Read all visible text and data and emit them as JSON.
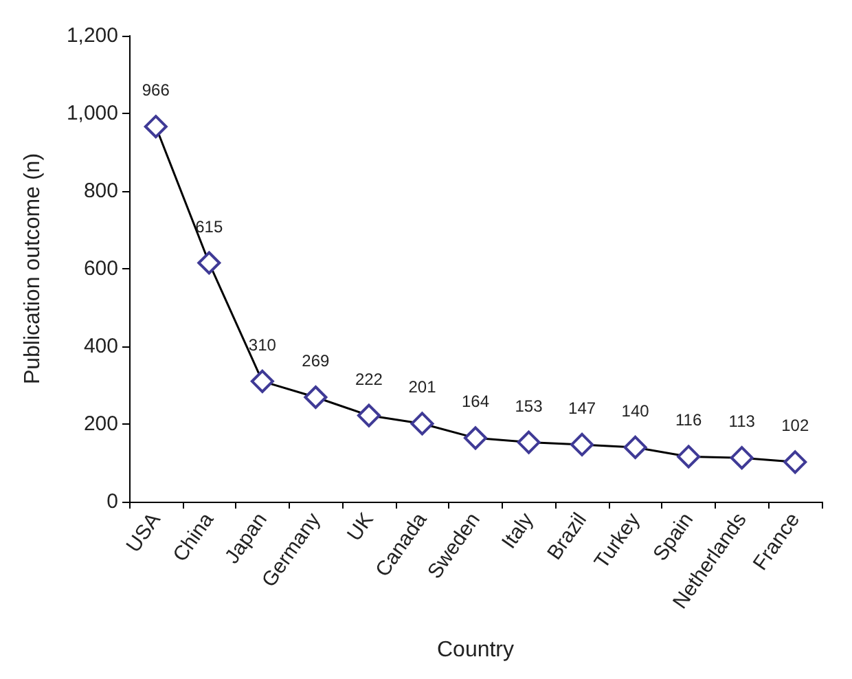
{
  "chart_data": {
    "type": "line",
    "xlabel": "Country",
    "ylabel": "Publication outcome (n)",
    "categories": [
      "USA",
      "China",
      "Japan",
      "Germany",
      "UK",
      "Canada",
      "Sweden",
      "Italy",
      "Brazil",
      "Turkey",
      "Spain",
      "Netherlands",
      "France"
    ],
    "series": [
      {
        "color": "#3f3a96",
        "values": [
          966,
          615,
          310,
          269,
          222,
          201,
          164,
          153,
          147,
          140,
          116,
          113,
          102
        ]
      }
    ],
    "ylim": [
      0,
      1200
    ],
    "yticks": [
      0,
      200,
      400,
      600,
      800,
      {
        "value": 1000,
        "label": "1,000"
      },
      {
        "value": 1200,
        "label": "1,200"
      }
    ],
    "data_labels": true,
    "marker": "diamond",
    "line_style": "solid",
    "grid": false
  }
}
